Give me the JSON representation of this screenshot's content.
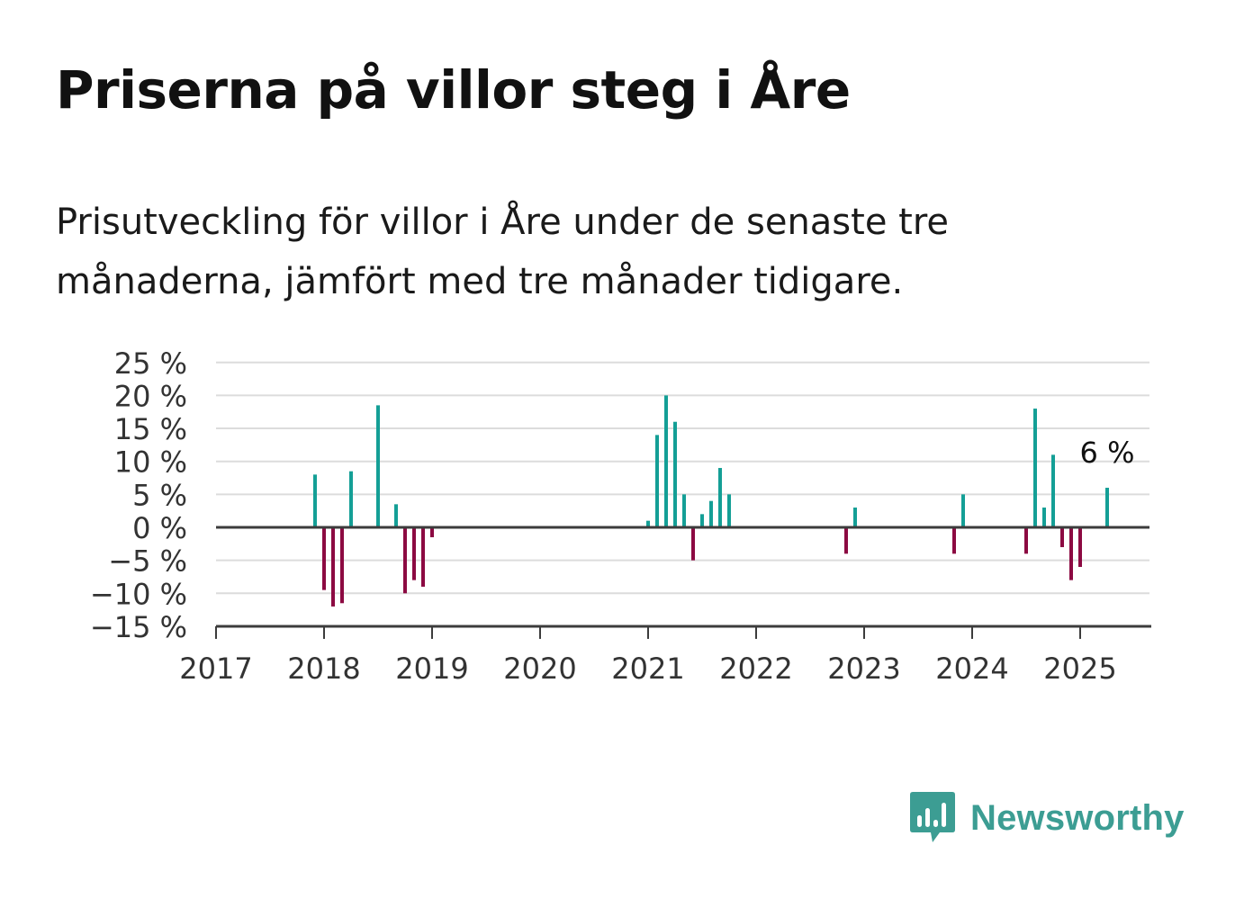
{
  "title": "Priserna på villor steg i Åre",
  "subtitle": "Prisutveckling för villor i Åre under de senaste tre månaderna, jämfört med tre månader tidigare.",
  "brand": {
    "name": "Newsworthy",
    "color": "#3c9d93",
    "icon": "bar-chart-speech-bubble-icon"
  },
  "colors": {
    "positive": "#149f96",
    "negative": "#8c0a42",
    "grid": "#dcdcdc",
    "axis": "#3c3c3c"
  },
  "chart_data": {
    "type": "bar",
    "x_ticks": [
      "2017",
      "2018",
      "2019",
      "2020",
      "2021",
      "2022",
      "2023",
      "2024",
      "2025"
    ],
    "y_ticks": [
      25,
      20,
      15,
      10,
      5,
      0,
      -5,
      -10,
      -15
    ],
    "y_tick_labels": [
      "25 %",
      "20 %",
      "15 %",
      "10 %",
      "5 %",
      "0 %",
      "−5 %",
      "−10 %",
      "−15 %"
    ],
    "ylim": [
      -15,
      25
    ],
    "xlim": [
      "2017-01",
      "2025-08"
    ],
    "grid": true,
    "annotation": {
      "x": "2025-04",
      "value": 6,
      "text": "6 %"
    },
    "points": [
      {
        "x": "2017-12",
        "value": 8
      },
      {
        "x": "2018-01",
        "value": -9.5
      },
      {
        "x": "2018-02",
        "value": -12
      },
      {
        "x": "2018-03",
        "value": -11.5
      },
      {
        "x": "2018-04",
        "value": 8.5
      },
      {
        "x": "2018-07",
        "value": 18.5
      },
      {
        "x": "2018-09",
        "value": 3.5
      },
      {
        "x": "2018-10",
        "value": -10
      },
      {
        "x": "2018-11",
        "value": -8
      },
      {
        "x": "2018-12",
        "value": -9
      },
      {
        "x": "2019-01",
        "value": -1.5
      },
      {
        "x": "2021-01",
        "value": 1
      },
      {
        "x": "2021-02",
        "value": 14
      },
      {
        "x": "2021-03",
        "value": 20
      },
      {
        "x": "2021-04",
        "value": 16
      },
      {
        "x": "2021-05",
        "value": 5
      },
      {
        "x": "2021-06",
        "value": -5
      },
      {
        "x": "2021-07",
        "value": 2
      },
      {
        "x": "2021-08",
        "value": 4
      },
      {
        "x": "2021-09",
        "value": 9
      },
      {
        "x": "2021-10",
        "value": 5
      },
      {
        "x": "2022-11",
        "value": -4
      },
      {
        "x": "2022-12",
        "value": 3
      },
      {
        "x": "2023-11",
        "value": -4
      },
      {
        "x": "2023-12",
        "value": 5
      },
      {
        "x": "2024-07",
        "value": -4
      },
      {
        "x": "2024-08",
        "value": 18
      },
      {
        "x": "2024-09",
        "value": 3
      },
      {
        "x": "2024-10",
        "value": 11
      },
      {
        "x": "2024-11",
        "value": -3
      },
      {
        "x": "2024-12",
        "value": -8
      },
      {
        "x": "2025-01",
        "value": -6
      },
      {
        "x": "2025-04",
        "value": 6
      }
    ]
  }
}
